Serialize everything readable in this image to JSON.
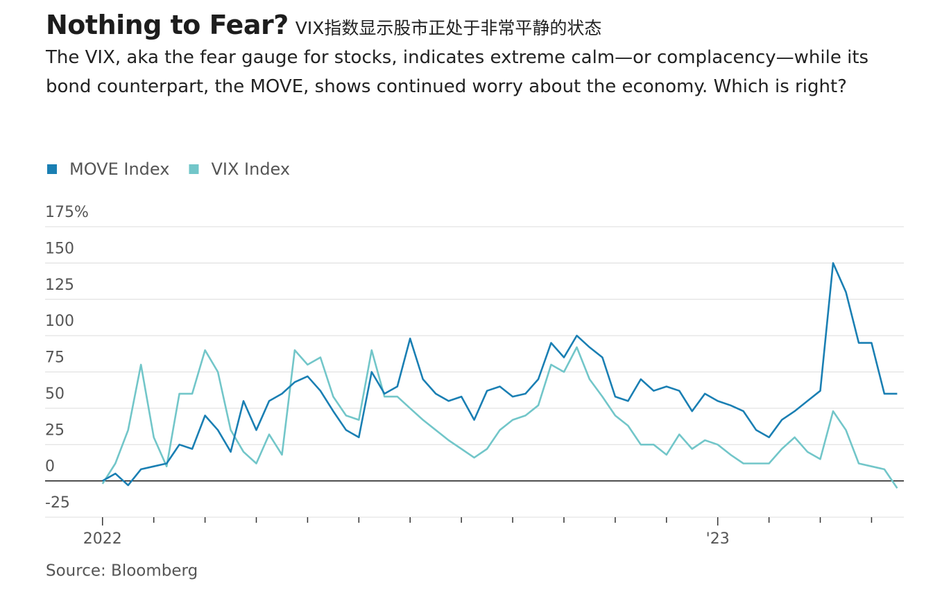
{
  "chart_data": {
    "type": "line",
    "title": "Nothing to Fear?",
    "title_note": "VIX指数显示股市正处于非常平静的状态",
    "subtitle": "The VIX, aka the fear gauge for stocks, indicates extreme calm—or complacency—while its bond counterpart, the MOVE, shows continued worry about the economy. Which is right?",
    "source": "Source: Bloomberg",
    "x": [
      0,
      0.25,
      0.5,
      0.75,
      1,
      1.25,
      1.5,
      1.75,
      2,
      2.25,
      2.5,
      2.75,
      3,
      3.25,
      3.5,
      3.75,
      4,
      4.25,
      4.5,
      4.75,
      5,
      5.25,
      5.5,
      5.75,
      6,
      6.25,
      6.5,
      6.75,
      7,
      7.25,
      7.5,
      7.75,
      8,
      8.25,
      8.5,
      8.75,
      9,
      9.25,
      9.5,
      9.75,
      10,
      10.25,
      10.5,
      10.75,
      11,
      11.25,
      11.5,
      11.75,
      12,
      12.25,
      12.5,
      12.75,
      13,
      13.25,
      13.5,
      13.75,
      14,
      14.25,
      14.5,
      14.75,
      15,
      15.25,
      15.5
    ],
    "series": [
      {
        "name": "MOVE Index",
        "color": "#1a7fb3",
        "values": [
          0,
          5,
          -3,
          8,
          10,
          12,
          25,
          22,
          45,
          35,
          20,
          55,
          35,
          55,
          60,
          68,
          72,
          62,
          48,
          35,
          30,
          75,
          60,
          65,
          98,
          70,
          60,
          55,
          58,
          42,
          62,
          65,
          58,
          60,
          70,
          95,
          85,
          100,
          92,
          85,
          58,
          55,
          70,
          62,
          65,
          62,
          48,
          60,
          55,
          52,
          48,
          35,
          30,
          42,
          48,
          55,
          62,
          150,
          130,
          95,
          95,
          60,
          60
        ]
      },
      {
        "name": "VIX Index",
        "color": "#72c6c9",
        "values": [
          -2,
          12,
          35,
          80,
          30,
          10,
          60,
          60,
          90,
          75,
          35,
          20,
          12,
          32,
          18,
          90,
          80,
          85,
          58,
          45,
          42,
          90,
          58,
          58,
          50,
          42,
          35,
          28,
          22,
          16,
          22,
          35,
          42,
          45,
          52,
          80,
          75,
          92,
          70,
          58,
          45,
          38,
          25,
          25,
          18,
          32,
          22,
          28,
          25,
          18,
          12,
          12,
          12,
          22,
          30,
          20,
          15,
          48,
          35,
          12,
          10,
          8,
          -5
        ]
      }
    ],
    "xlim": [
      -1.12,
      15.63
    ],
    "xticks": [
      {
        "value": 0,
        "label": "2022"
      },
      {
        "value": 12,
        "label": "'23"
      }
    ],
    "xminorticks": [
      1,
      2,
      3,
      4,
      5,
      6,
      7,
      8,
      9,
      10,
      11,
      13,
      14,
      15
    ],
    "ylim": [
      -25,
      175
    ],
    "yticks": [
      -25,
      0,
      25,
      50,
      75,
      100,
      125,
      150,
      {
        "value": 175,
        "label": "175%"
      }
    ],
    "grid": true
  }
}
